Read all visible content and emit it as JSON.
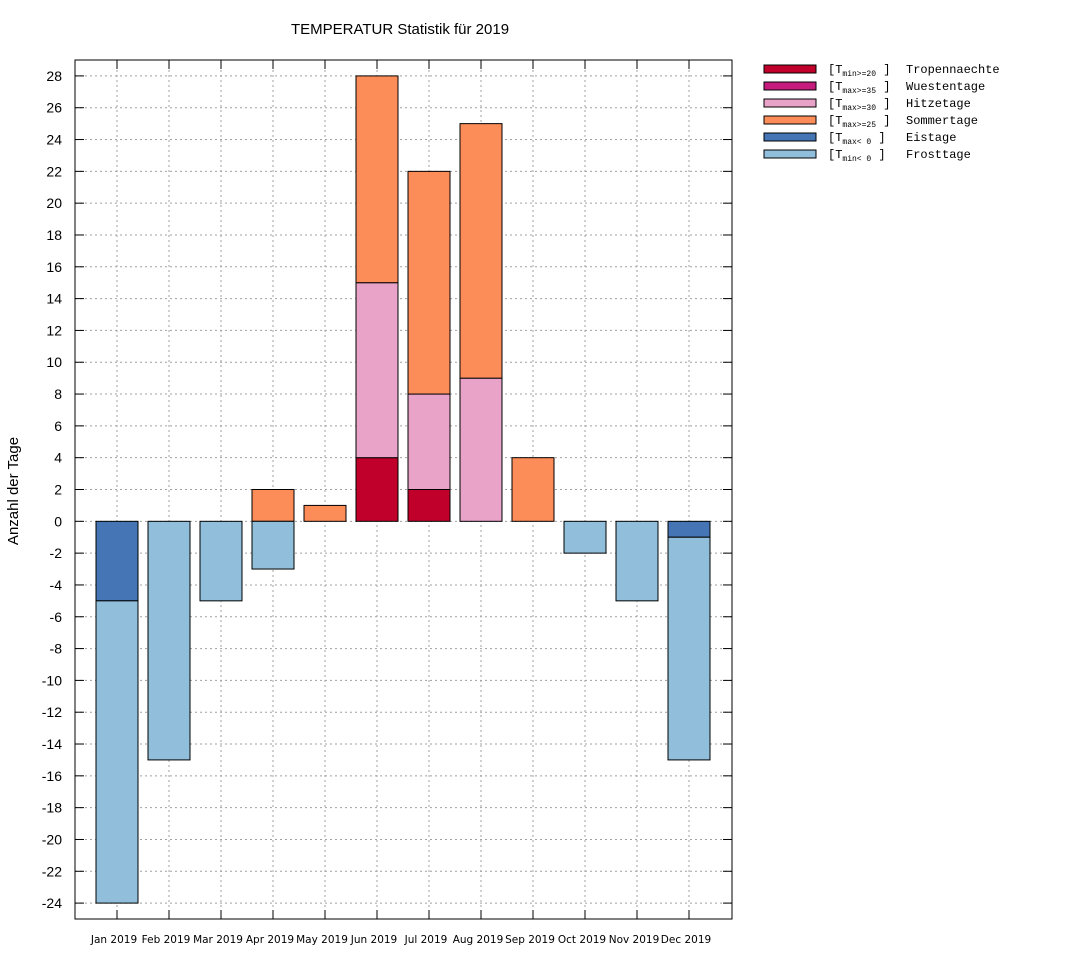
{
  "chart_data": {
    "type": "bar",
    "stacked": true,
    "title": "TEMPERATUR Statistik für 2019",
    "xlabel": "",
    "ylabel": "Anzahl der Tage",
    "ylim": [
      -25,
      29
    ],
    "yticks": [
      28,
      26,
      24,
      22,
      20,
      18,
      16,
      14,
      12,
      10,
      8,
      6,
      4,
      2,
      0,
      -2,
      -4,
      -6,
      -8,
      -10,
      -12,
      -14,
      -16,
      -18,
      -20,
      -22,
      -24
    ],
    "grid": true,
    "legend_position": "outside-top-right",
    "categories": [
      "Jan 2019",
      "Feb 2019",
      "Mar 2019",
      "Apr 2019",
      "May 2019",
      "Jun 2019",
      "Jul 2019",
      "Aug 2019",
      "Sep 2019",
      "Oct 2019",
      "Nov 2019",
      "Dec 2019"
    ],
    "series": [
      {
        "name": "Tropennaechte",
        "legend_prefix": "[T",
        "legend_sub": "min>=20",
        "legend_suffix": " ]",
        "color": "#c0002a",
        "direction": "positive",
        "values": [
          0,
          0,
          0,
          0,
          0,
          4,
          2,
          0,
          0,
          0,
          0,
          0
        ]
      },
      {
        "name": "Wuestentage",
        "legend_prefix": "[T",
        "legend_sub": "max>=35",
        "legend_suffix": " ]",
        "color": "#c51b7d",
        "direction": "positive",
        "values": [
          0,
          0,
          0,
          0,
          0,
          0,
          0,
          0,
          0,
          0,
          0,
          0
        ]
      },
      {
        "name": "Hitzetage",
        "legend_prefix": "[T",
        "legend_sub": "max>=30",
        "legend_suffix": " ]",
        "color": "#e9a3c9",
        "direction": "positive",
        "values": [
          0,
          0,
          0,
          0,
          0,
          11,
          6,
          9,
          0,
          0,
          0,
          0
        ]
      },
      {
        "name": "Sommertage",
        "legend_prefix": "[T",
        "legend_sub": "max>=25",
        "legend_suffix": " ]",
        "color": "#fc8d59",
        "direction": "positive",
        "values": [
          0,
          0,
          0,
          2,
          1,
          13,
          14,
          16,
          4,
          0,
          0,
          0
        ]
      },
      {
        "name": "Eistage",
        "legend_prefix": "[T",
        "legend_sub": "max< 0",
        "legend_suffix": " ]",
        "color": "#4575b4",
        "direction": "negative",
        "values": [
          5,
          0,
          0,
          0,
          0,
          0,
          0,
          0,
          0,
          0,
          0,
          1
        ]
      },
      {
        "name": "Frosttage",
        "legend_prefix": "[T",
        "legend_sub": "min< 0",
        "legend_suffix": " ]",
        "color": "#91bfdb",
        "direction": "negative",
        "values": [
          19,
          15,
          5,
          3,
          0,
          0,
          0,
          0,
          0,
          2,
          5,
          14
        ]
      }
    ]
  }
}
